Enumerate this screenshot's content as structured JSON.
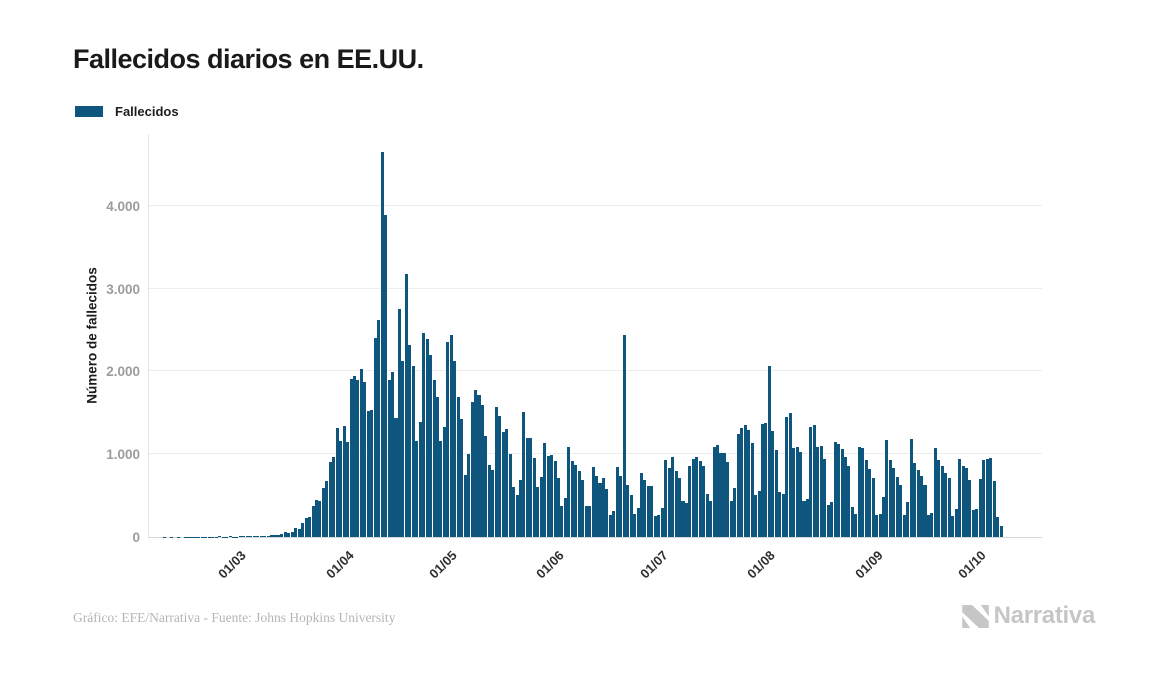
{
  "header": {
    "title": "Fallecidos diarios en EE.UU."
  },
  "legend": {
    "label": "Fallecidos",
    "swatch_color": "#0F567F"
  },
  "footer": {
    "credit": "Gráfico: EFE/Narrativa - Fuente: Johns Hopkins University",
    "brand": "Narrativa"
  },
  "chart_data": {
    "type": "bar",
    "title": "Fallecidos diarios en EE.UU.",
    "series_name": "Fallecidos",
    "xlabel": "",
    "ylabel": "Número de fallecidos",
    "ylim": [
      0,
      4880
    ],
    "grid": true,
    "bar_color": "#0F567F",
    "x_start_date": "2020-02-09",
    "x_frequency": "daily",
    "y_ticks": [
      {
        "value": 0,
        "label": "0"
      },
      {
        "value": 1000,
        "label": "1.000"
      },
      {
        "value": 2000,
        "label": "2.000"
      },
      {
        "value": 3000,
        "label": "3.000"
      },
      {
        "value": 4000,
        "label": "4.000"
      }
    ],
    "x_ticks": [
      {
        "day_index": 21,
        "label": "01/03"
      },
      {
        "day_index": 52,
        "label": "01/04"
      },
      {
        "day_index": 82,
        "label": "01/05"
      },
      {
        "day_index": 113,
        "label": "01/06"
      },
      {
        "day_index": 143,
        "label": "01/07"
      },
      {
        "day_index": 174,
        "label": "01/08"
      },
      {
        "day_index": 205,
        "label": "01/09"
      },
      {
        "day_index": 235,
        "label": "01/10"
      }
    ],
    "values": [
      0,
      0,
      0,
      0,
      1,
      0,
      1,
      0,
      1,
      0,
      2,
      1,
      2,
      1,
      3,
      2,
      4,
      3,
      5,
      6,
      8,
      6,
      4,
      8,
      6,
      4,
      7,
      9,
      11,
      13,
      16,
      9,
      14,
      12,
      17,
      21,
      25,
      30,
      41,
      57,
      49,
      66,
      111,
      96,
      164,
      225,
      247,
      372,
      445,
      441,
      587,
      671,
      909,
      968,
      1321,
      1165,
      1342,
      1151,
      1906,
      1943,
      1900,
      2035,
      1877,
      1528,
      1535,
      2408,
      2621,
      4650,
      3890,
      1891,
      1997,
      1433,
      2750,
      2126,
      3180,
      2325,
      2065,
      1154,
      1384,
      2470,
      2390,
      2201,
      1897,
      1691,
      1154,
      1324,
      2350,
      2440,
      2129,
      1687,
      1422,
      750,
      1008,
      1630,
      1772,
      1715,
      1595,
      1218,
      865,
      808,
      1568,
      1461,
      1263,
      1305,
      1003,
      605,
      505,
      693,
      1505,
      1199,
      1193,
      960,
      605,
      730,
      1134,
      982,
      995,
      922,
      709,
      373,
      473,
      1093,
      918,
      868,
      802,
      683,
      373,
      380,
      851,
      739,
      653,
      717,
      578,
      267,
      309,
      851,
      739,
      2437,
      624,
      512,
      278,
      351,
      779,
      684,
      616,
      614,
      252,
      263,
      351,
      926,
      834,
      964,
      797,
      718,
      436,
      416,
      858,
      943,
      969,
      917,
      863,
      516,
      439,
      1089,
      1111,
      1019,
      1019,
      905,
      441,
      587,
      1244,
      1319,
      1355,
      1290,
      1130,
      507,
      559,
      1362,
      1380,
      2060,
      1276,
      1051,
      540,
      515,
      1450,
      1499,
      1076,
      1087,
      1023,
      441,
      457,
      1324,
      1356,
      1090,
      1101,
      946,
      391,
      427,
      1147,
      1126,
      1066,
      963,
      852,
      360,
      276,
      1083,
      1077,
      934,
      818,
      712,
      267,
      282,
      485,
      1170,
      928,
      831,
      724,
      632,
      263,
      422,
      1184,
      894,
      813,
      731,
      632,
      267,
      286,
      1074,
      925,
      862,
      778,
      708,
      256,
      344,
      939,
      855,
      832,
      684,
      323,
      334,
      706,
      930,
      942,
      960,
      672,
      240,
      130
    ]
  }
}
